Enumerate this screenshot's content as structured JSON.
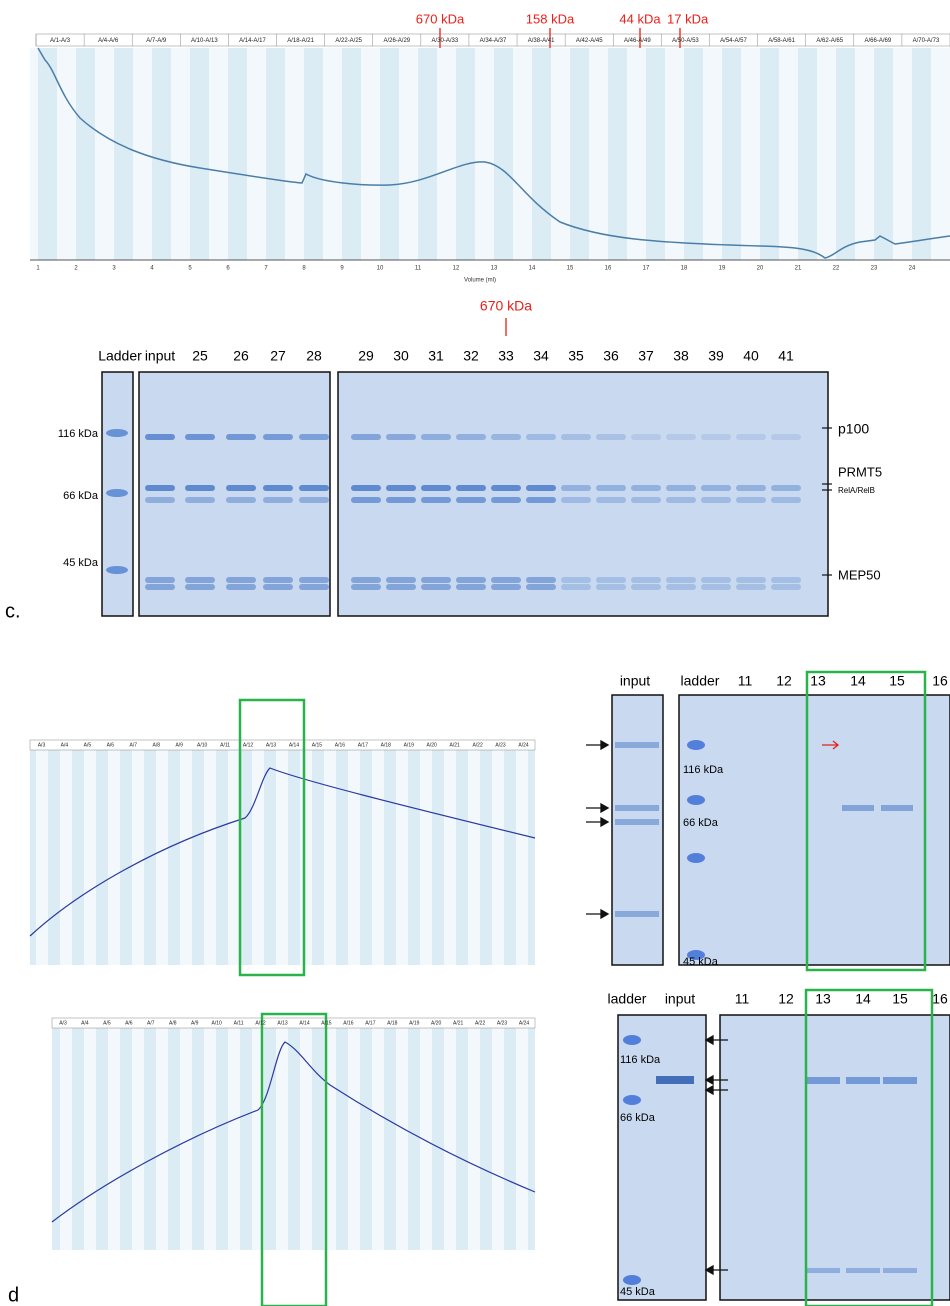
{
  "panel_c": {
    "label": "c.",
    "chromatogram": {
      "markers": [
        "670 kDa",
        "158 kDa",
        "44 kDa",
        "17 kDa"
      ],
      "fractions": [
        "A/1-A/3",
        "A/4-A/6",
        "A/7-A/9",
        "A/10-A/13",
        "A/14-A/17",
        "A/18-A/21",
        "A/22-A/25",
        "A/26-A/29",
        "A/30-A/33",
        "A/34-A/37",
        "A/38-A/41",
        "A/42-A/45",
        "A/46-A/49",
        "A/50-A/53",
        "A/54-A/57",
        "A/58-A/61",
        "A/62-A/65",
        "A/66-A/69",
        "A/70-A/73"
      ],
      "x_ticks": [
        "1",
        "2",
        "3",
        "4",
        "5",
        "6",
        "7",
        "8",
        "9",
        "10",
        "11",
        "12",
        "13",
        "14",
        "15",
        "16",
        "17",
        "18",
        "19",
        "20",
        "21",
        "22",
        "23",
        "24"
      ],
      "x_label": "Volume (ml)"
    },
    "gel": {
      "marker": "670 kDa",
      "lanes": [
        "Ladder",
        "input",
        "25",
        "26",
        "27",
        "28",
        "29",
        "30",
        "31",
        "32",
        "33",
        "34",
        "35",
        "36",
        "37",
        "38",
        "39",
        "40",
        "41"
      ],
      "ladder_bands": [
        "116 kDa",
        "66 kDa",
        "45 kDa"
      ],
      "band_labels": [
        "p100",
        "PRMT5",
        "RelA/RelB",
        "MEP50"
      ]
    }
  },
  "panel_d": {
    "label": "d",
    "chromatogram_fractions": [
      "A/3",
      "A/4",
      "A/5",
      "A/6",
      "A/7",
      "A/8",
      "A/9",
      "A/10",
      "A/11",
      "A/12",
      "A/13",
      "A/14",
      "A/15",
      "A/16",
      "A/17",
      "A/18",
      "A/19",
      "A/20",
      "A/21",
      "A/22",
      "A/23",
      "A/24"
    ],
    "gel_top": {
      "lanes": [
        "input",
        "ladder",
        "11",
        "12",
        "13",
        "14",
        "15",
        "16"
      ],
      "ladder_bands": [
        "116 kDa",
        "66 kDa",
        "45 kDa"
      ]
    },
    "gel_bottom": {
      "lanes": [
        "ladder",
        "input",
        "11",
        "12",
        "13",
        "14",
        "15",
        "16"
      ],
      "ladder_bands": [
        "116 kDa",
        "66 kDa",
        "45 kDa"
      ]
    }
  }
}
